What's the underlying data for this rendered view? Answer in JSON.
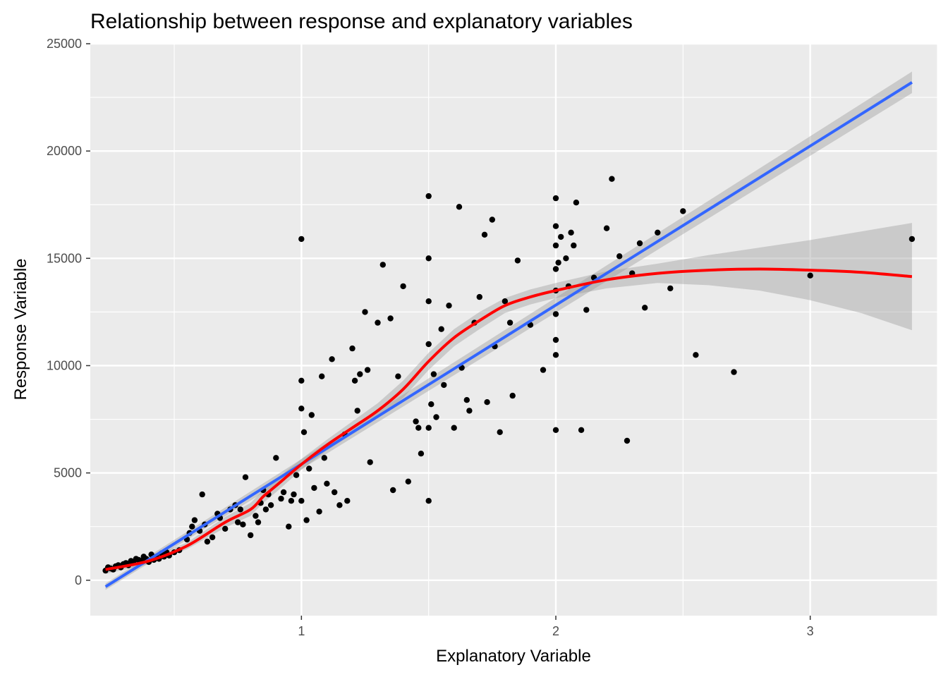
{
  "chart_data": {
    "type": "scatter",
    "title": "Relationship between response and explanatory variables",
    "xlabel": "Explanatory Variable",
    "ylabel": "Response Variable",
    "xlim": [
      0.17,
      3.5
    ],
    "ylim": [
      -1650,
      25000
    ],
    "x_ticks": [
      1,
      2,
      3
    ],
    "x_tick_labels": [
      "1",
      "2",
      "3"
    ],
    "y_ticks": [
      0,
      5000,
      10000,
      15000,
      20000,
      25000
    ],
    "y_tick_labels": [
      "0",
      "5000",
      "10000",
      "15000",
      "20000",
      "25000"
    ],
    "grid": true,
    "legend": "none",
    "background_color": "#ebebeb",
    "point_color": "#000000",
    "linear_fit": {
      "color": "#3366ff",
      "x": [
        0.23,
        3.4
      ],
      "y": [
        -300,
        23200
      ],
      "band_lower": [
        -450,
        22700
      ],
      "band_upper": [
        -150,
        23700
      ]
    },
    "smooth_fit": {
      "color": "#ff0000",
      "x": [
        0.23,
        0.4,
        0.55,
        0.7,
        0.8,
        0.85,
        0.9,
        1.0,
        1.1,
        1.2,
        1.3,
        1.4,
        1.5,
        1.6,
        1.7,
        1.8,
        1.9,
        2.0,
        2.2,
        2.4,
        2.6,
        2.8,
        3.0,
        3.2,
        3.4
      ],
      "y": [
        500,
        900,
        1600,
        2700,
        3300,
        3900,
        4400,
        5400,
        6300,
        7100,
        7900,
        8900,
        10200,
        11300,
        12100,
        12800,
        13200,
        13500,
        14000,
        14300,
        14450,
        14500,
        14450,
        14350,
        14150
      ],
      "band_half_width": [
        200,
        150,
        150,
        250,
        300,
        300,
        300,
        250,
        250,
        300,
        350,
        400,
        400,
        400,
        400,
        350,
        350,
        350,
        400,
        450,
        700,
        1000,
        1400,
        1900,
        2500
      ]
    },
    "points": [
      [
        0.23,
        450
      ],
      [
        0.24,
        600
      ],
      [
        0.25,
        550
      ],
      [
        0.26,
        500
      ],
      [
        0.27,
        650
      ],
      [
        0.28,
        700
      ],
      [
        0.29,
        600
      ],
      [
        0.3,
        750
      ],
      [
        0.31,
        800
      ],
      [
        0.32,
        700
      ],
      [
        0.33,
        900
      ],
      [
        0.34,
        850
      ],
      [
        0.35,
        1000
      ],
      [
        0.36,
        950
      ],
      [
        0.37,
        900
      ],
      [
        0.38,
        1100
      ],
      [
        0.39,
        1000
      ],
      [
        0.4,
        850
      ],
      [
        0.41,
        1200
      ],
      [
        0.42,
        950
      ],
      [
        0.43,
        1100
      ],
      [
        0.44,
        1000
      ],
      [
        0.45,
        1250
      ],
      [
        0.46,
        1100
      ],
      [
        0.47,
        1300
      ],
      [
        0.48,
        1150
      ],
      [
        0.5,
        1300
      ],
      [
        0.52,
        1400
      ],
      [
        0.55,
        1900
      ],
      [
        0.56,
        2200
      ],
      [
        0.57,
        2500
      ],
      [
        0.58,
        2800
      ],
      [
        0.6,
        2300
      ],
      [
        0.61,
        4000
      ],
      [
        0.62,
        2600
      ],
      [
        0.63,
        1800
      ],
      [
        0.65,
        2000
      ],
      [
        0.67,
        3100
      ],
      [
        0.68,
        2900
      ],
      [
        0.7,
        2400
      ],
      [
        0.72,
        3300
      ],
      [
        0.74,
        3500
      ],
      [
        0.75,
        2700
      ],
      [
        0.76,
        3300
      ],
      [
        0.77,
        2600
      ],
      [
        0.78,
        4800
      ],
      [
        0.8,
        2100
      ],
      [
        0.82,
        3000
      ],
      [
        0.83,
        2700
      ],
      [
        0.84,
        3600
      ],
      [
        0.85,
        4200
      ],
      [
        0.86,
        3300
      ],
      [
        0.87,
        4000
      ],
      [
        0.88,
        3500
      ],
      [
        0.9,
        5700
      ],
      [
        0.92,
        3800
      ],
      [
        0.93,
        4100
      ],
      [
        0.95,
        2500
      ],
      [
        0.96,
        3700
      ],
      [
        0.97,
        4000
      ],
      [
        0.98,
        4900
      ],
      [
        1.0,
        15900
      ],
      [
        1.0,
        3700
      ],
      [
        1.0,
        8000
      ],
      [
        1.0,
        9300
      ],
      [
        1.01,
        6900
      ],
      [
        1.02,
        2800
      ],
      [
        1.03,
        5200
      ],
      [
        1.04,
        7700
      ],
      [
        1.05,
        4300
      ],
      [
        1.07,
        3200
      ],
      [
        1.08,
        9500
      ],
      [
        1.09,
        5700
      ],
      [
        1.1,
        4500
      ],
      [
        1.12,
        10300
      ],
      [
        1.13,
        4100
      ],
      [
        1.15,
        3500
      ],
      [
        1.17,
        6800
      ],
      [
        1.18,
        3700
      ],
      [
        1.2,
        10800
      ],
      [
        1.21,
        9300
      ],
      [
        1.22,
        7900
      ],
      [
        1.23,
        9600
      ],
      [
        1.25,
        12500
      ],
      [
        1.26,
        9800
      ],
      [
        1.27,
        5500
      ],
      [
        1.3,
        12000
      ],
      [
        1.32,
        14700
      ],
      [
        1.35,
        12200
      ],
      [
        1.36,
        4200
      ],
      [
        1.38,
        9500
      ],
      [
        1.4,
        13700
      ],
      [
        1.42,
        4600
      ],
      [
        1.45,
        7400
      ],
      [
        1.46,
        7100
      ],
      [
        1.47,
        5900
      ],
      [
        1.5,
        17900
      ],
      [
        1.5,
        15000
      ],
      [
        1.5,
        13000
      ],
      [
        1.5,
        11000
      ],
      [
        1.5,
        7100
      ],
      [
        1.5,
        3700
      ],
      [
        1.51,
        8200
      ],
      [
        1.52,
        9600
      ],
      [
        1.53,
        7600
      ],
      [
        1.55,
        11700
      ],
      [
        1.56,
        9100
      ],
      [
        1.58,
        12800
      ],
      [
        1.6,
        7100
      ],
      [
        1.62,
        17400
      ],
      [
        1.63,
        9900
      ],
      [
        1.65,
        8400
      ],
      [
        1.66,
        7900
      ],
      [
        1.68,
        12000
      ],
      [
        1.7,
        13200
      ],
      [
        1.72,
        16100
      ],
      [
        1.73,
        8300
      ],
      [
        1.75,
        16800
      ],
      [
        1.76,
        10900
      ],
      [
        1.78,
        6900
      ],
      [
        1.8,
        13000
      ],
      [
        1.82,
        12000
      ],
      [
        1.83,
        8600
      ],
      [
        1.85,
        14900
      ],
      [
        1.9,
        11900
      ],
      [
        1.95,
        9800
      ],
      [
        2.0,
        17800
      ],
      [
        2.0,
        16500
      ],
      [
        2.0,
        15600
      ],
      [
        2.0,
        14500
      ],
      [
        2.0,
        13500
      ],
      [
        2.0,
        12400
      ],
      [
        2.0,
        11200
      ],
      [
        2.0,
        10500
      ],
      [
        2.0,
        7000
      ],
      [
        2.01,
        14800
      ],
      [
        2.02,
        16000
      ],
      [
        2.04,
        15000
      ],
      [
        2.05,
        13700
      ],
      [
        2.06,
        16200
      ],
      [
        2.07,
        15600
      ],
      [
        2.08,
        17600
      ],
      [
        2.1,
        7000
      ],
      [
        2.12,
        12600
      ],
      [
        2.15,
        14100
      ],
      [
        2.2,
        16400
      ],
      [
        2.22,
        18700
      ],
      [
        2.25,
        15100
      ],
      [
        2.28,
        6500
      ],
      [
        2.3,
        14300
      ],
      [
        2.33,
        15700
      ],
      [
        2.35,
        12700
      ],
      [
        2.4,
        16200
      ],
      [
        2.45,
        13600
      ],
      [
        2.5,
        17200
      ],
      [
        2.55,
        10500
      ],
      [
        2.7,
        9700
      ],
      [
        3.0,
        14200
      ],
      [
        3.4,
        15900
      ]
    ]
  }
}
